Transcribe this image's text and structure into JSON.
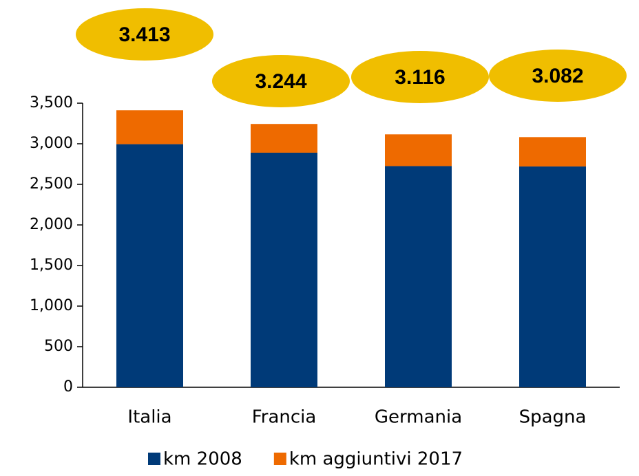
{
  "chart_data": {
    "type": "stacked_bar",
    "categories": [
      "Italia",
      "Francia",
      "Germania",
      "Spagna"
    ],
    "series": [
      {
        "name": "km 2008",
        "color": "#003a78",
        "values": [
          2995,
          2890,
          2725,
          2720
        ]
      },
      {
        "name": "km aggiuntivi 2017",
        "color": "#ee6a00",
        "values": [
          418,
          354,
          391,
          362
        ]
      }
    ],
    "annotations": [
      "3.413",
      "3.244",
      "3.116",
      "3.082"
    ],
    "ylim": [
      0,
      3500
    ],
    "yticks": [
      0,
      500,
      {
        "value": 1000,
        "label": "1,000"
      },
      {
        "value": 1500,
        "label": "1,500"
      },
      {
        "value": 2000,
        "label": "2,000"
      },
      {
        "value": 2500,
        "label": "2,500"
      },
      {
        "value": 3000,
        "label": "3,000"
      },
      {
        "value": 3500,
        "label": "3,500"
      }
    ],
    "legend": "bottom"
  }
}
